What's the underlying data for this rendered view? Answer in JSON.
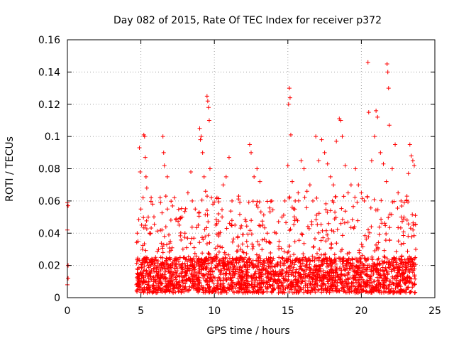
{
  "chart_data": {
    "type": "scatter",
    "title": "Day 082 of 2015, Rate Of TEC Index for receiver p372",
    "xlabel": "GPS time / hours",
    "ylabel": "ROTI / TECUs",
    "xlim": [
      0,
      25
    ],
    "ylim": [
      0,
      0.16
    ],
    "xticks": [
      0,
      5,
      10,
      15,
      20,
      25
    ],
    "xtick_labels": [
      "0",
      "5",
      "10",
      "15",
      "20",
      "25"
    ],
    "yticks": [
      0,
      0.02,
      0.04,
      0.06,
      0.08,
      0.1,
      0.12,
      0.14,
      0.16
    ],
    "ytick_labels": [
      "0",
      "0.02",
      "0.04",
      "0.06",
      "0.08",
      "0.1",
      "0.12",
      "0.14",
      "0.16"
    ],
    "grid": true,
    "marker": "+",
    "color": "#ff0000",
    "series": [
      {
        "points": [
          [
            0.0,
            0.008
          ],
          [
            0.05,
            0.012
          ],
          [
            0.05,
            0.02
          ],
          [
            0.0,
            0.042
          ],
          [
            0.05,
            0.057
          ],
          [
            0.0,
            0.059
          ],
          [
            4.7,
            0.008
          ],
          [
            4.8,
            0.035
          ],
          [
            4.9,
            0.093
          ],
          [
            4.95,
            0.078
          ],
          [
            5.0,
            0.055
          ],
          [
            5.05,
            0.045
          ],
          [
            5.1,
            0.03
          ],
          [
            5.15,
            0.062
          ],
          [
            5.2,
            0.101
          ],
          [
            5.25,
            0.1
          ],
          [
            5.3,
            0.087
          ],
          [
            5.35,
            0.075
          ],
          [
            5.4,
            0.068
          ],
          [
            5.5,
            0.05
          ],
          [
            5.6,
            0.04
          ],
          [
            5.7,
            0.062
          ],
          [
            5.8,
            0.058
          ],
          [
            6.0,
            0.025
          ],
          [
            6.2,
            0.03
          ],
          [
            6.4,
            0.02
          ],
          [
            6.5,
            0.1
          ],
          [
            6.55,
            0.09
          ],
          [
            6.6,
            0.082
          ],
          [
            6.7,
            0.063
          ],
          [
            6.8,
            0.075
          ],
          [
            7.0,
            0.035
          ],
          [
            7.3,
            0.018
          ],
          [
            7.6,
            0.045
          ],
          [
            7.8,
            0.05
          ],
          [
            8.0,
            0.04
          ],
          [
            8.2,
            0.065
          ],
          [
            8.4,
            0.078
          ],
          [
            8.5,
            0.06
          ],
          [
            8.7,
            0.055
          ],
          [
            8.9,
            0.045
          ],
          [
            9.0,
            0.105
          ],
          [
            9.05,
            0.098
          ],
          [
            9.1,
            0.1
          ],
          [
            9.2,
            0.09
          ],
          [
            9.3,
            0.075
          ],
          [
            9.4,
            0.066
          ],
          [
            9.5,
            0.125
          ],
          [
            9.55,
            0.122
          ],
          [
            9.6,
            0.118
          ],
          [
            9.65,
            0.11
          ],
          [
            9.7,
            0.08
          ],
          [
            9.8,
            0.062
          ],
          [
            9.9,
            0.058
          ],
          [
            10.1,
            0.045
          ],
          [
            10.3,
            0.04
          ],
          [
            10.6,
            0.07
          ],
          [
            10.8,
            0.075
          ],
          [
            11.0,
            0.087
          ],
          [
            11.2,
            0.06
          ],
          [
            11.4,
            0.045
          ],
          [
            11.6,
            0.038
          ],
          [
            11.8,
            0.03
          ],
          [
            12.0,
            0.028
          ],
          [
            12.2,
            0.035
          ],
          [
            12.4,
            0.095
          ],
          [
            12.5,
            0.09
          ],
          [
            12.7,
            0.075
          ],
          [
            12.9,
            0.08
          ],
          [
            13.1,
            0.072
          ],
          [
            13.3,
            0.045
          ],
          [
            13.6,
            0.04
          ],
          [
            13.9,
            0.06
          ],
          [
            14.2,
            0.04
          ],
          [
            14.4,
            0.035
          ],
          [
            14.6,
            0.05
          ],
          [
            14.8,
            0.06
          ],
          [
            15.0,
            0.082
          ],
          [
            15.05,
            0.12
          ],
          [
            15.1,
            0.13
          ],
          [
            15.15,
            0.124
          ],
          [
            15.2,
            0.101
          ],
          [
            15.3,
            0.072
          ],
          [
            15.5,
            0.06
          ],
          [
            15.7,
            0.065
          ],
          [
            15.9,
            0.085
          ],
          [
            16.1,
            0.08
          ],
          [
            16.3,
            0.066
          ],
          [
            16.5,
            0.07
          ],
          [
            16.7,
            0.06
          ],
          [
            16.9,
            0.1
          ],
          [
            17.1,
            0.085
          ],
          [
            17.3,
            0.098
          ],
          [
            17.5,
            0.09
          ],
          [
            17.7,
            0.083
          ],
          [
            17.9,
            0.075
          ],
          [
            18.1,
            0.07
          ],
          [
            18.3,
            0.097
          ],
          [
            18.5,
            0.111
          ],
          [
            18.6,
            0.11
          ],
          [
            18.7,
            0.1
          ],
          [
            18.9,
            0.082
          ],
          [
            19.1,
            0.065
          ],
          [
            19.3,
            0.07
          ],
          [
            19.6,
            0.08
          ],
          [
            19.8,
            0.07
          ],
          [
            20.0,
            0.065
          ],
          [
            20.2,
            0.06
          ],
          [
            20.45,
            0.146
          ],
          [
            20.5,
            0.115
          ],
          [
            20.7,
            0.085
          ],
          [
            20.9,
            0.1
          ],
          [
            21.0,
            0.116
          ],
          [
            21.1,
            0.112
          ],
          [
            21.3,
            0.09
          ],
          [
            21.5,
            0.083
          ],
          [
            21.7,
            0.072
          ],
          [
            21.75,
            0.145
          ],
          [
            21.8,
            0.14
          ],
          [
            21.85,
            0.13
          ],
          [
            21.9,
            0.107
          ],
          [
            22.1,
            0.08
          ],
          [
            22.3,
            0.095
          ],
          [
            22.5,
            0.065
          ],
          [
            22.7,
            0.06
          ],
          [
            22.9,
            0.05
          ],
          [
            23.1,
            0.063
          ],
          [
            23.2,
            0.077
          ],
          [
            23.3,
            0.095
          ],
          [
            23.4,
            0.088
          ],
          [
            23.5,
            0.085
          ],
          [
            23.6,
            0.082
          ],
          [
            23.7,
            0.03
          ]
        ]
      }
    ]
  }
}
